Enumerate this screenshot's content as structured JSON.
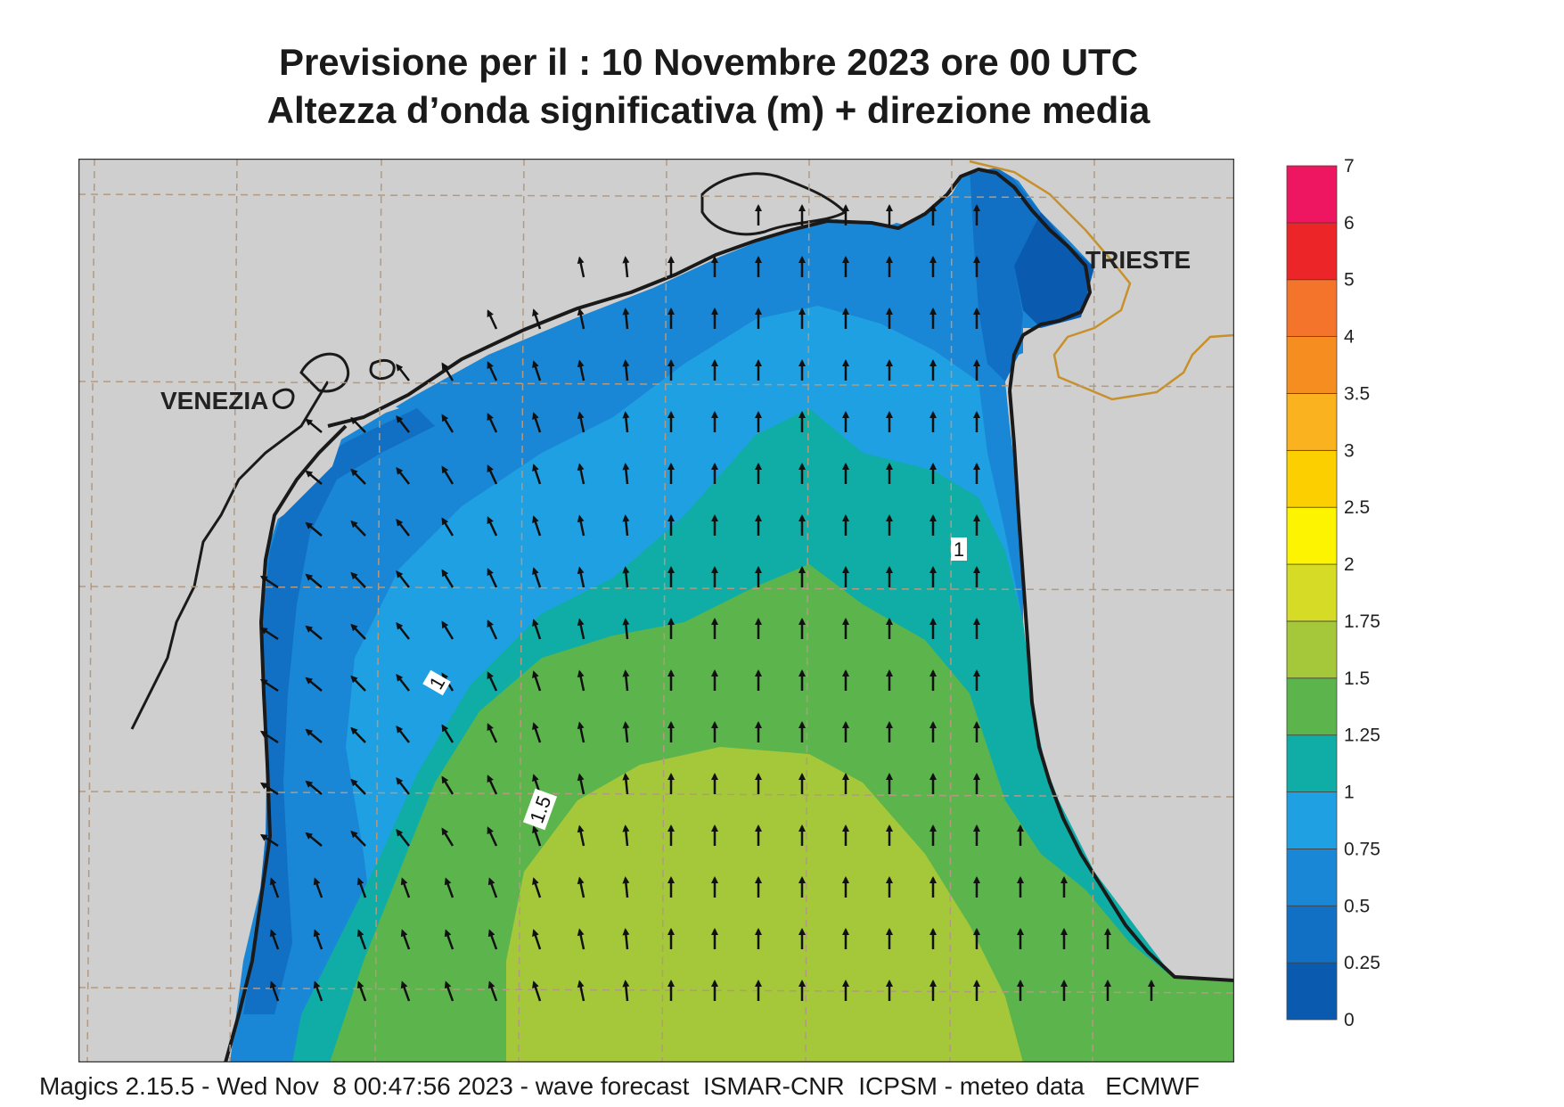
{
  "header": {
    "title_line1": "Previsione per il  :  10 Novembre  2023   ore 00 UTC",
    "title_line2": "Altezza d’onda significativa (m) + direzione media"
  },
  "places": {
    "venezia": "VENEZIA",
    "trieste": "TRIESTE"
  },
  "contour_labels": [
    "1",
    "1",
    "1.5"
  ],
  "legend": {
    "labels": [
      "0",
      "0.25",
      "0.5",
      "0.75",
      "1",
      "1.25",
      "1.5",
      "1.75",
      "2",
      "2.5",
      "3",
      "3.5",
      "4",
      "5",
      "6",
      "7"
    ],
    "colors": [
      "#0a5bb0",
      "#1170c4",
      "#1a86d6",
      "#1fa0e3",
      "#0fada6",
      "#5cb44c",
      "#a4c83a",
      "#d6dc26",
      "#fcf400",
      "#fcd000",
      "#fab21f",
      "#f68d21",
      "#f3742a",
      "#ec2529",
      "#ee1660"
    ]
  },
  "colors": {
    "land": "#cfcfcf",
    "coast": "#1a1a1a",
    "border": "#c8902a",
    "grid": "#b29a80"
  },
  "footer": "Magics 2.15.5 - Wed Nov  8 00:47:56 2023 - wave forecast  ISMAR-CNR  ICPSM - meteo data   ECMWF"
}
